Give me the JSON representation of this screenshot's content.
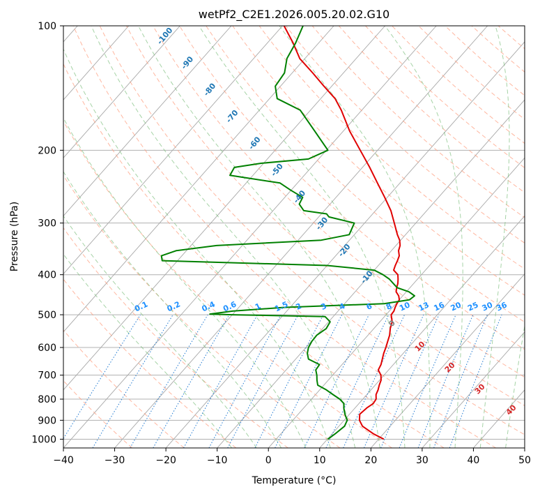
{
  "chart_data": {
    "type": "line",
    "title": "wetPf2_C2E1.2026.005.20.02.G10",
    "xlabel": "Temperature (°C)",
    "ylabel": "Pressure (hPa)",
    "xlim": [
      -40,
      50
    ],
    "ylim": [
      1050,
      100
    ],
    "y_scale": "log",
    "x_ticks": [
      -40,
      -30,
      -20,
      -10,
      0,
      10,
      20,
      30,
      40,
      50
    ],
    "y_ticks": [
      100,
      200,
      300,
      400,
      500,
      600,
      700,
      800,
      900,
      1000
    ],
    "grid": true,
    "skew": true,
    "series": [
      {
        "color": "#e00000",
        "pressure": [
          1000,
          970,
          930,
          900,
          870,
          840,
          820,
          800,
          780,
          760,
          740,
          720,
          700,
          680,
          660,
          640,
          620,
          600,
          580,
          560,
          540,
          520,
          500,
          490,
          480,
          470,
          460,
          450,
          440,
          430,
          420,
          410,
          400,
          390,
          380,
          370,
          360,
          350,
          340,
          330,
          320,
          300,
          280,
          260,
          240,
          220,
          200,
          180,
          160,
          150,
          140,
          130,
          120,
          110,
          100
        ],
        "temperature": [
          21.0,
          18.0,
          14.6,
          13.0,
          12.0,
          12.3,
          12.8,
          12.6,
          11.8,
          11.4,
          10.8,
          10.3,
          9.4,
          8.0,
          7.6,
          6.9,
          6.2,
          5.6,
          4.9,
          4.2,
          3.2,
          2.4,
          1.0,
          0.9,
          0.5,
          0.2,
          0.0,
          -0.8,
          -2.0,
          -2.6,
          -3.1,
          -3.8,
          -4.6,
          -6.2,
          -6.7,
          -7.1,
          -7.6,
          -8.6,
          -9.2,
          -10.2,
          -11.6,
          -14.2,
          -17.0,
          -20.5,
          -24.4,
          -28.6,
          -33.4,
          -38.7,
          -44.0,
          -47.2,
          -51.5,
          -56.0,
          -61.0,
          -65.0,
          -69.7
        ]
      },
      {
        "color": "#008000",
        "pressure": [
          1000,
          970,
          930,
          900,
          870,
          840,
          820,
          800,
          780,
          760,
          740,
          720,
          700,
          680,
          660,
          640,
          620,
          600,
          580,
          560,
          540,
          520,
          505,
          500,
          498,
          490,
          480,
          470,
          460,
          450,
          440,
          430,
          420,
          410,
          400,
          390,
          380,
          370,
          360,
          350,
          340,
          330,
          320,
          300,
          290,
          285,
          280,
          270,
          260,
          250,
          240,
          230,
          220,
          215,
          210,
          200,
          180,
          160,
          150,
          140,
          130,
          120,
          110,
          100
        ],
        "temperature": [
          10.1,
          10.6,
          11.1,
          10.6,
          9.1,
          7.8,
          7.1,
          5.5,
          3.4,
          1.3,
          -1.2,
          -2.2,
          -3.1,
          -4.2,
          -4.4,
          -7.5,
          -8.7,
          -9.5,
          -9.9,
          -10.0,
          -9.3,
          -9.7,
          -11.6,
          -30.0,
          -34.5,
          -30.6,
          -21.3,
          -2.3,
          2.0,
          2.3,
          0.5,
          -2.5,
          -4.0,
          -5.5,
          -7.5,
          -10.0,
          -20.0,
          -53.0,
          -54.0,
          -52.0,
          -45.0,
          -25.5,
          -21.0,
          -22.0,
          -28.0,
          -29.0,
          -34.0,
          -36.0,
          -36.5,
          -40.0,
          -43.4,
          -54.5,
          -55.0,
          -50.5,
          -42.0,
          -39.7,
          -45.5,
          -52.0,
          -58.5,
          -61.0,
          -61.5,
          -63.5,
          -64.5,
          -66.0
        ]
      }
    ],
    "dry_adiabat_labels": [
      "-100",
      "-90",
      "-80",
      "-70",
      "-60",
      "-50",
      "-40",
      "-30",
      "-20",
      "-10"
    ],
    "moist_adiabat_labels": [
      "0",
      "10",
      "20",
      "30",
      "40"
    ],
    "mixing_ratio_labels": [
      "0.1",
      "0.2",
      "0.4",
      "0.6",
      "1",
      "1.5",
      "2",
      "3",
      "4",
      "6",
      "8",
      "10",
      "13",
      "16",
      "20",
      "25",
      "30",
      "36"
    ],
    "colors": {
      "temperature": "#e00000",
      "dewpoint": "#008000",
      "isotherm": "#000000",
      "dry_adiabat": "#ff9f80",
      "moist_adiabat": "#80c080",
      "mixing_ratio": "#1e78d0",
      "dry_label": "#1f77b4",
      "mix_label": "#1e90ff",
      "moist_label": "#d62728",
      "zero_label": "#808080"
    }
  }
}
